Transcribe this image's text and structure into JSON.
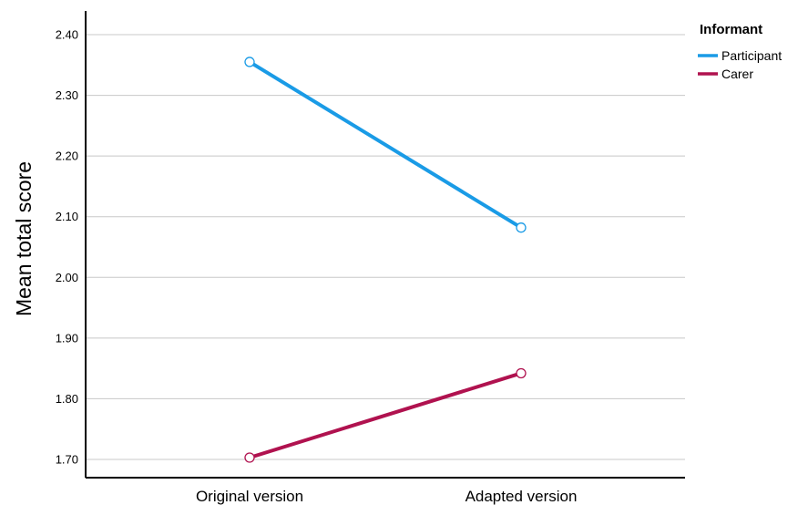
{
  "chart_data": {
    "type": "line",
    "categories": [
      "Original version",
      "Adapted version"
    ],
    "series": [
      {
        "name": "Participant",
        "values": [
          2.355,
          2.082
        ],
        "color": "#1a9be6"
      },
      {
        "name": "Carer",
        "values": [
          1.703,
          1.842
        ],
        "color": "#b0124f"
      }
    ],
    "ylabel": "Mean total score",
    "xlabel": "",
    "ylim": [
      1.68,
      2.43
    ],
    "yticks": [
      "1.70",
      "1.80",
      "1.90",
      "2.00",
      "2.10",
      "2.20",
      "2.30",
      "2.40"
    ],
    "grid": true,
    "legend": {
      "title": "Informant",
      "placement": "top-right"
    },
    "marker": "open-circle"
  }
}
